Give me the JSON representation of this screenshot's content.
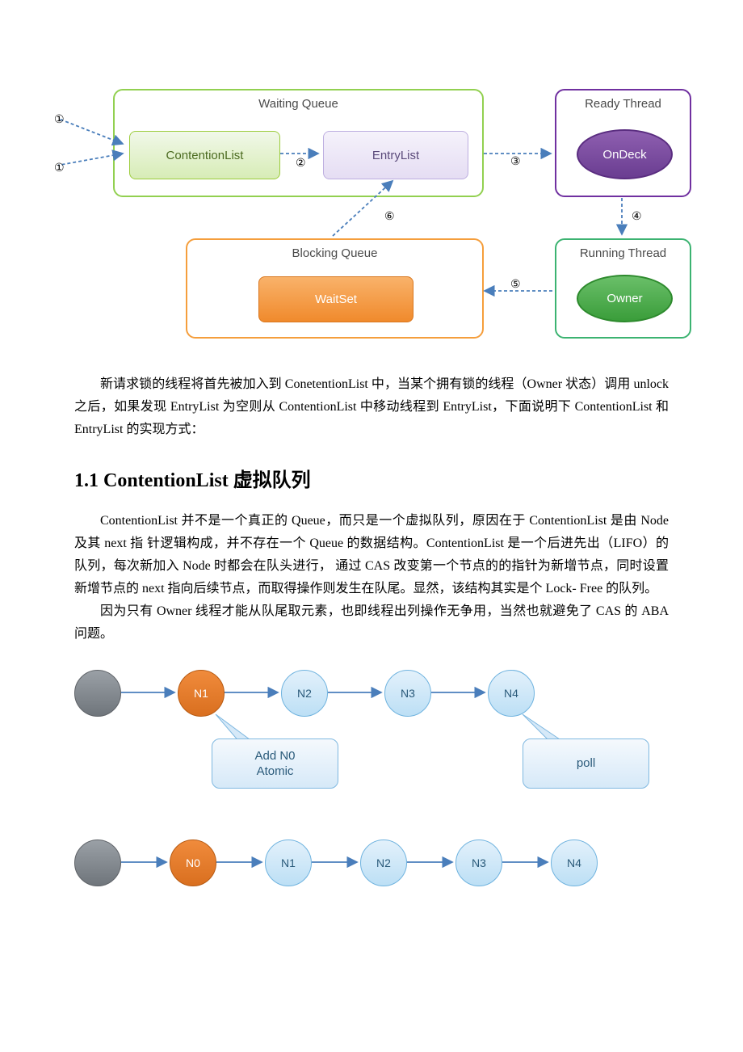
{
  "diagram1": {
    "waiting_queue": {
      "title": "Waiting Queue",
      "border_color": "#92d050",
      "title_color": "#4a4a4a",
      "title_fontsize": 15,
      "contention": {
        "label": "ContentionList",
        "bg_top": "#f1f8e9",
        "bg_bottom": "#d7ecb6",
        "border": "#9ccc3c",
        "text_color": "#4a6a1f",
        "fontsize": 15
      },
      "entry": {
        "label": "EntryList",
        "bg_top": "#f5f2fb",
        "bg_bottom": "#e5ddf3",
        "border": "#bdaee0",
        "text_color": "#5a4a7a",
        "fontsize": 15
      }
    },
    "ready_thread": {
      "title": "Ready Thread",
      "border_color": "#7030a0",
      "title_color": "#4a4a4a",
      "title_fontsize": 15,
      "ondeck": {
        "label": "OnDeck",
        "bg_top": "#8e5fb0",
        "bg_bottom": "#6a3d91",
        "border": "#5a2d80",
        "fontsize": 15
      }
    },
    "blocking_queue": {
      "title": "Blocking Queue",
      "border_color": "#f59e3c",
      "title_color": "#4a4a4a",
      "title_fontsize": 15,
      "waitset": {
        "label": "WaitSet",
        "bg_top": "#f9b26a",
        "bg_bottom": "#f08a2c",
        "border": "#d9771f",
        "fontsize": 15,
        "text_color": "#ffffff"
      }
    },
    "running_thread": {
      "title": "Running Thread",
      "border_color": "#3cb371",
      "title_color": "#4a4a4a",
      "title_fontsize": 15,
      "owner": {
        "label": "Owner",
        "bg_top": "#6abf69",
        "bg_bottom": "#3a9d3a",
        "border": "#2d8a2d",
        "fontsize": 15
      }
    },
    "arrows": {
      "color": "#4a7ebb",
      "dash": "4,3",
      "labels": {
        "one_a": "①",
        "one_b": "①",
        "two": "②",
        "three": "③",
        "four": "④",
        "five": "⑤",
        "six": "⑥"
      }
    }
  },
  "body_text": {
    "p1": "新请求锁的线程将首先被加入到 ConetentionList 中，当某个拥有锁的线程（Owner 状态）调用 unlock 之后，如果发现  EntryList 为空则从 ContentionList 中移动线程到 EntryList，下面说明下 ContentionList 和 EntryList  的实现方式：",
    "h1": "1.1 ContentionList 虚拟队列",
    "p2": "ContentionList 并不是一个真正的 Queue，而只是一个虚拟队列，原因在于 ContentionList 是由 Node 及其 next 指  针逻辑构成，并不存在一个 Queue 的数据结构。ContentionList 是一个后进先出（LIFO）的队列，每次新加入 Node 时都会在队头进行，  通过 CAS 改变第一个节点的的指针为新增节点，同时设置新增节点的 next 指向后续节点，而取得操作则发生在队尾。显然，该结构其实是个 Lock- Free 的队列。",
    "p3": "因为只有 Owner 线程才能从队尾取元素，也即线程出列操作无争用，当然也就避免了 CAS 的 ABA 问题。"
  },
  "diagram2": {
    "row1": {
      "nodes": [
        {
          "label": "",
          "fill_top": "#9aa0a6",
          "fill_bottom": "#6f757b",
          "border": "#5f6368",
          "text": "#fff"
        },
        {
          "label": "N1",
          "fill_top": "#f08b3c",
          "fill_bottom": "#d96f1f",
          "border": "#b75b13",
          "text": "#fff"
        },
        {
          "label": "N2",
          "fill_top": "#e3f1fb",
          "fill_bottom": "#bcdff5",
          "border": "#6fb3df",
          "text": "#2a5a7a"
        },
        {
          "label": "N3",
          "fill_top": "#e3f1fb",
          "fill_bottom": "#bcdff5",
          "border": "#6fb3df",
          "text": "#2a5a7a"
        },
        {
          "label": "N4",
          "fill_top": "#e3f1fb",
          "fill_bottom": "#bcdff5",
          "border": "#6fb3df",
          "text": "#2a5a7a"
        }
      ],
      "callouts": [
        {
          "label": "Add N0\nAtomic",
          "fill_top": "#f5f9fd",
          "fill_bottom": "#d6e9f8",
          "border": "#7fb8e0",
          "text": "#2a5a7a"
        },
        {
          "label": "poll",
          "fill_top": "#f5f9fd",
          "fill_bottom": "#d6e9f8",
          "border": "#7fb8e0",
          "text": "#2a5a7a"
        }
      ]
    },
    "row2": {
      "nodes": [
        {
          "label": "",
          "fill_top": "#9aa0a6",
          "fill_bottom": "#6f757b",
          "border": "#5f6368",
          "text": "#fff"
        },
        {
          "label": "N0",
          "fill_top": "#f08b3c",
          "fill_bottom": "#d96f1f",
          "border": "#b75b13",
          "text": "#fff"
        },
        {
          "label": "N1",
          "fill_top": "#e3f1fb",
          "fill_bottom": "#bcdff5",
          "border": "#6fb3df",
          "text": "#2a5a7a"
        },
        {
          "label": "N2",
          "fill_top": "#e3f1fb",
          "fill_bottom": "#bcdff5",
          "border": "#6fb3df",
          "text": "#2a5a7a"
        },
        {
          "label": "N3",
          "fill_top": "#e3f1fb",
          "fill_bottom": "#bcdff5",
          "border": "#6fb3df",
          "text": "#2a5a7a"
        },
        {
          "label": "N4",
          "fill_top": "#e3f1fb",
          "fill_bottom": "#bcdff5",
          "border": "#6fb3df",
          "text": "#2a5a7a"
        }
      ]
    },
    "arrow_color": "#4a7ebb",
    "node_diameter": 56,
    "node_gap_row1": 128,
    "node_gap_row2": 118
  }
}
